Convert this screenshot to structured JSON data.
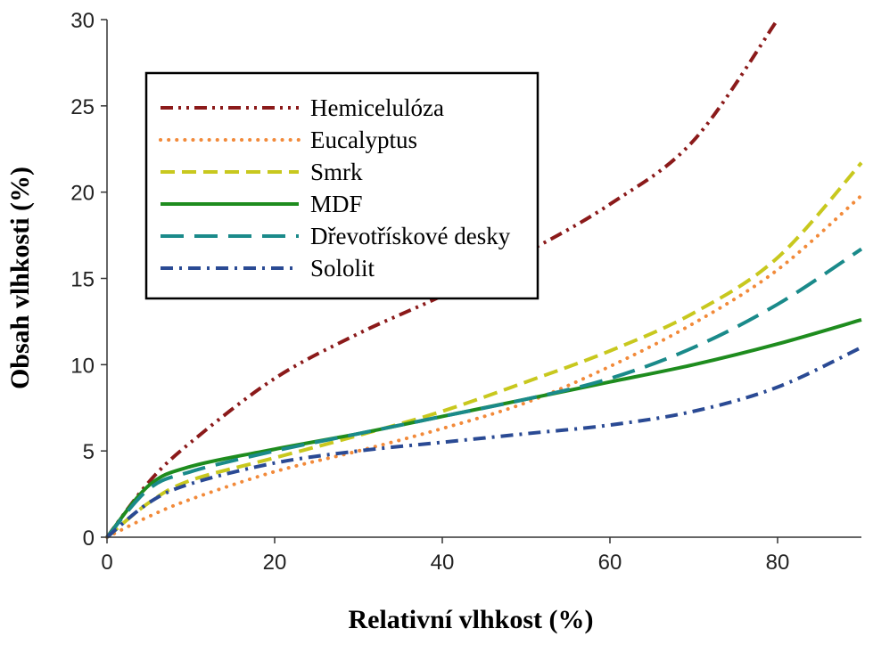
{
  "chart_data": {
    "type": "line",
    "title": "",
    "xlabel": "Relativní vlhkost (%)",
    "ylabel": "Obsah vlhkosti (%)",
    "xlim": [
      0,
      90
    ],
    "ylim": [
      0,
      30
    ],
    "xticks": [
      0,
      20,
      40,
      60,
      80
    ],
    "yticks": [
      0,
      5,
      10,
      15,
      20,
      25,
      30
    ],
    "grid": false,
    "legend_position": "top-left",
    "series": [
      {
        "name": "Hemicelulóza",
        "color": "#8b1a1a",
        "dash": "dash-dot-dot",
        "x": [
          0,
          5,
          10,
          20,
          30,
          40,
          50,
          60,
          70,
          80
        ],
        "y": [
          0,
          3.2,
          5.5,
          9.2,
          11.8,
          14.0,
          16.5,
          19.3,
          23.0,
          30.0
        ]
      },
      {
        "name": "Eucalyptus",
        "color": "#f28a3a",
        "dash": "dotted",
        "x": [
          0,
          5,
          10,
          20,
          30,
          40,
          50,
          60,
          70,
          80,
          90
        ],
        "y": [
          0,
          1.2,
          2.2,
          3.8,
          5.0,
          6.3,
          7.8,
          9.9,
          12.4,
          15.5,
          19.8
        ]
      },
      {
        "name": "Smrk",
        "color": "#c8c81e",
        "dash": "dashed",
        "x": [
          0,
          5,
          10,
          20,
          30,
          40,
          50,
          60,
          70,
          80,
          90
        ],
        "y": [
          0,
          2.0,
          3.3,
          4.6,
          5.9,
          7.3,
          9.0,
          10.8,
          13.0,
          16.2,
          21.7
        ]
      },
      {
        "name": "MDF",
        "color": "#1e8c1e",
        "dash": "solid",
        "x": [
          0,
          5,
          10,
          20,
          30,
          40,
          50,
          60,
          70,
          80,
          90
        ],
        "y": [
          0,
          3.0,
          4.1,
          5.1,
          6.0,
          7.0,
          8.0,
          9.0,
          10.0,
          11.2,
          12.6
        ]
      },
      {
        "name": "Dřevotřískové desky",
        "color": "#1a8a8a",
        "dash": "long-dash",
        "x": [
          0,
          5,
          10,
          20,
          30,
          40,
          50,
          60,
          70,
          80,
          90
        ],
        "y": [
          0,
          2.8,
          3.8,
          5.0,
          6.0,
          7.0,
          8.0,
          9.2,
          11.0,
          13.5,
          16.7
        ]
      },
      {
        "name": "Sololit",
        "color": "#2a4a94",
        "dash": "dash-dot",
        "x": [
          0,
          5,
          10,
          20,
          30,
          40,
          50,
          60,
          70,
          80,
          90
        ],
        "y": [
          0,
          2.0,
          3.1,
          4.3,
          5.0,
          5.5,
          6.0,
          6.5,
          7.3,
          8.7,
          11.0
        ]
      }
    ]
  }
}
